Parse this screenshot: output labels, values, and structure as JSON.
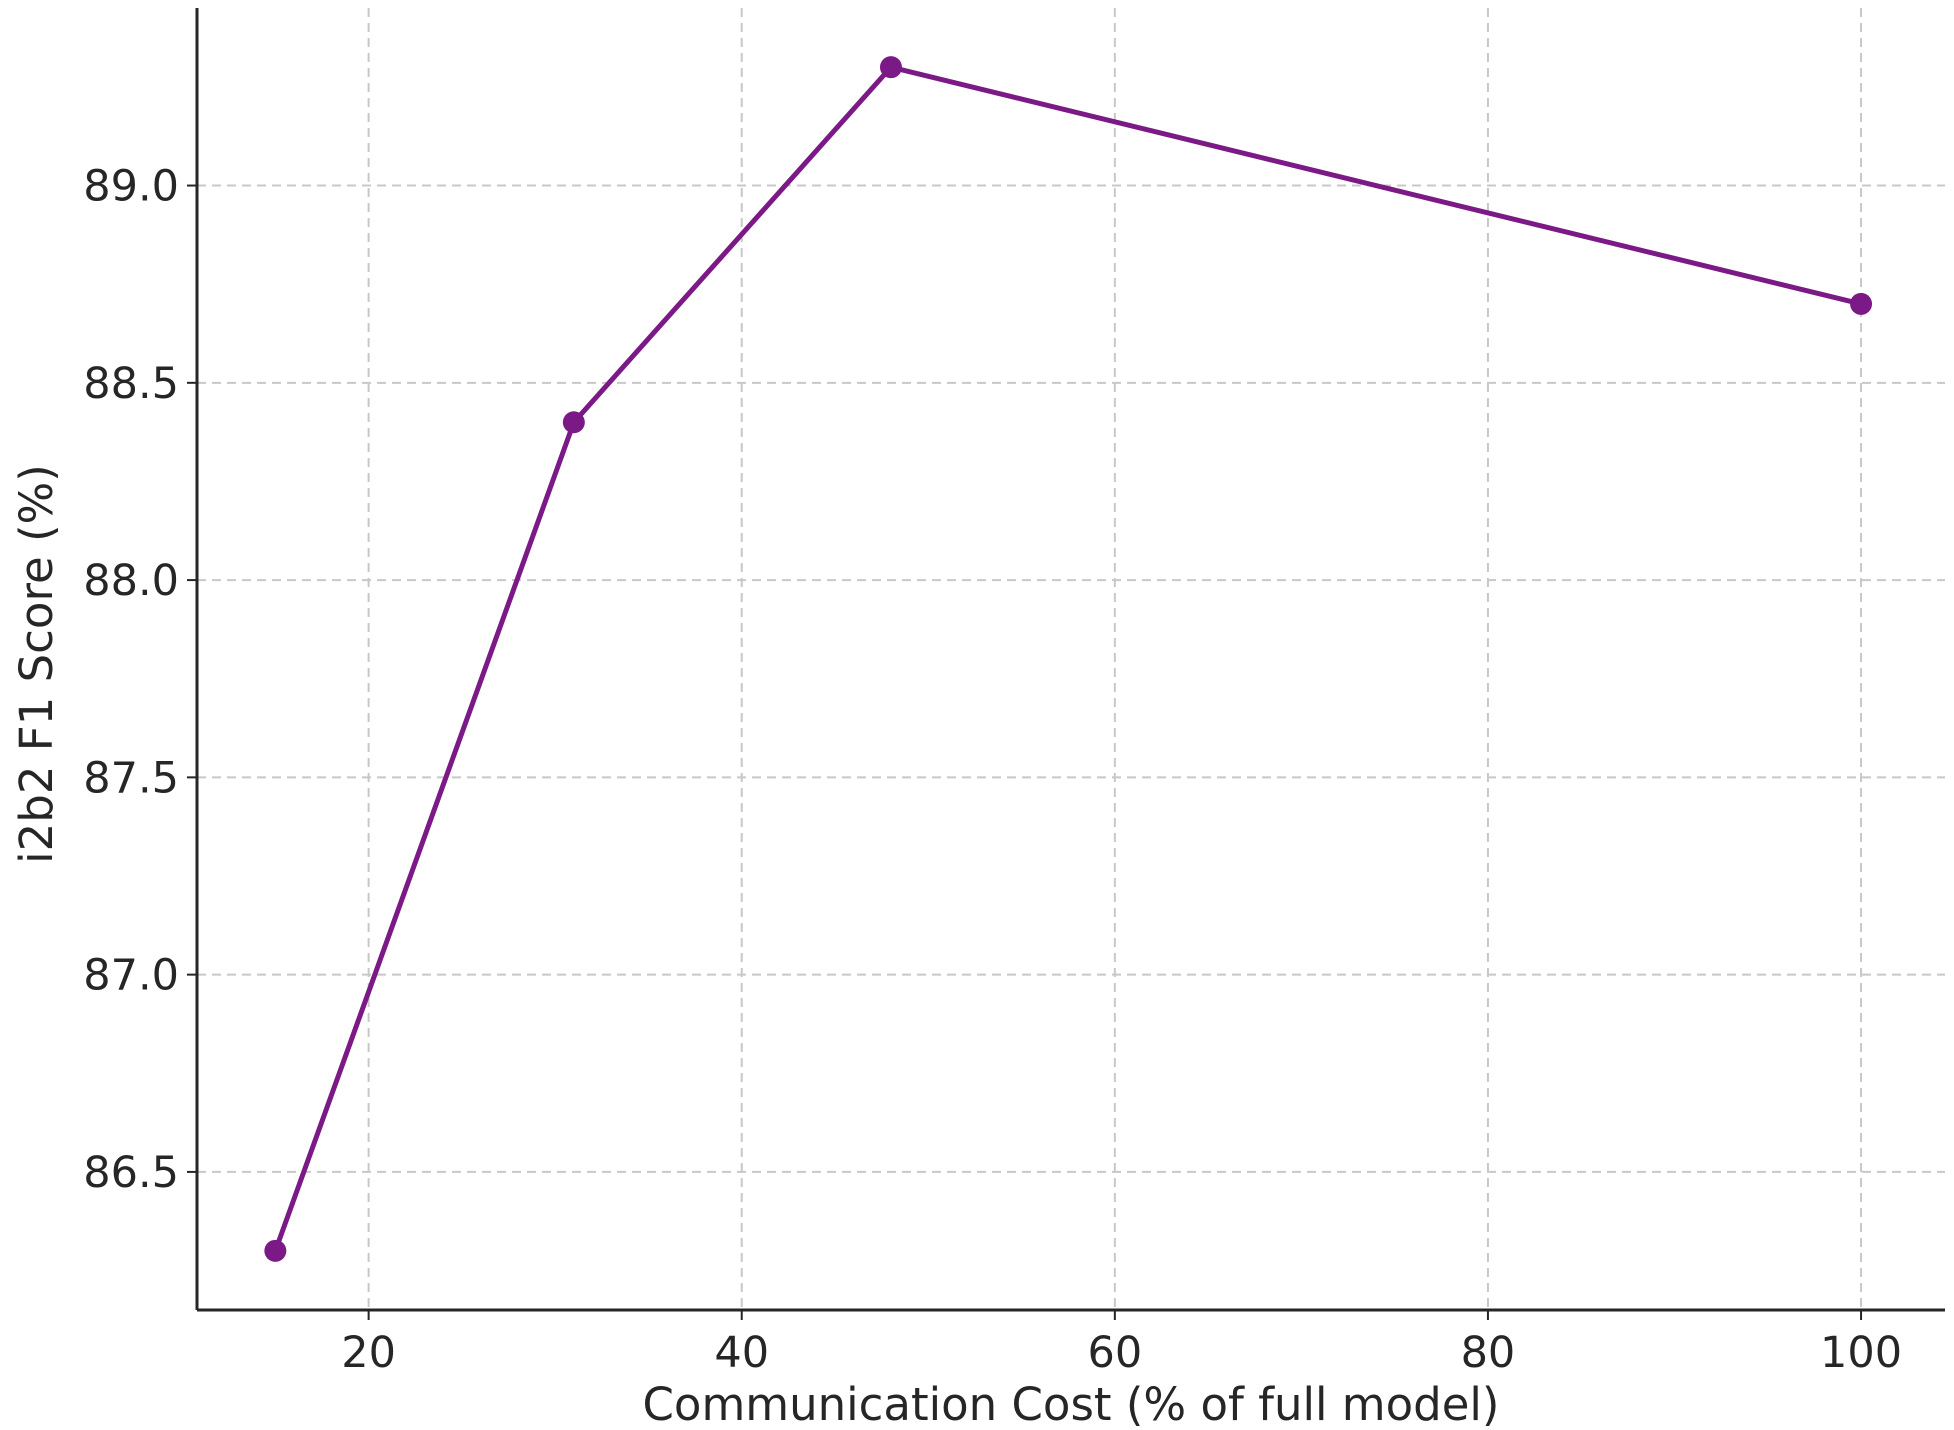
{
  "chart_data": {
    "type": "line",
    "title": "",
    "xlabel": "Communication Cost (% of full model)",
    "ylabel": "i2b2 F1 Score (%)",
    "xlim": [
      10.8,
      104.5
    ],
    "ylim": [
      86.15,
      89.45
    ],
    "xticks": [
      20,
      40,
      60,
      80,
      100
    ],
    "xtick_labels": [
      "20",
      "40",
      "60",
      "80",
      "100"
    ],
    "yticks": [
      86.5,
      87.0,
      87.5,
      88.0,
      88.5,
      89.0
    ],
    "ytick_labels": [
      "86.5",
      "87.0",
      "87.5",
      "88.0",
      "88.5",
      "89.0"
    ],
    "grid": true,
    "series": [
      {
        "color": "#7b1a86",
        "marker": "circle",
        "x": [
          15,
          31,
          48,
          100
        ],
        "y": [
          86.3,
          88.4,
          89.3,
          88.7
        ]
      }
    ]
  }
}
